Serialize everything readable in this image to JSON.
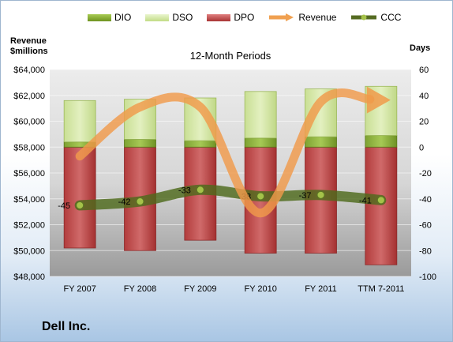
{
  "chart_data": {
    "type": "bar",
    "title": "12-Month Periods",
    "company": "Dell Inc.",
    "left_axis_label": [
      "Revenue",
      "$millions"
    ],
    "right_axis_label": "Days",
    "categories": [
      "FY 2007",
      "FY 2008",
      "FY 2009",
      "FY 2010",
      "FY 2011",
      "TTM 7-2011"
    ],
    "left_axis": {
      "min": 48000,
      "max": 64000,
      "ticks": [
        "$48,000",
        "$50,000",
        "$52,000",
        "$54,000",
        "$56,000",
        "$58,000",
        "$60,000",
        "$62,000",
        "$64,000"
      ]
    },
    "right_axis": {
      "min": -100,
      "max": 60,
      "ticks": [
        "-100",
        "-80",
        "-60",
        "-40",
        "-20",
        "0",
        "20",
        "40",
        "60"
      ]
    },
    "series": [
      {
        "name": "DIO",
        "axis": "right",
        "kind": "stacked-bar",
        "color": "#8db33a",
        "values": [
          4,
          6,
          5,
          7,
          8,
          9
        ]
      },
      {
        "name": "DSO",
        "axis": "right",
        "kind": "stacked-bar",
        "color": "#d4e7a4",
        "values": [
          32,
          31,
          33,
          36,
          37,
          38
        ]
      },
      {
        "name": "DPO",
        "axis": "right",
        "kind": "negative-bar",
        "color": "#c44d4d",
        "values": [
          -78,
          -80,
          -72,
          -82,
          -82,
          -91
        ]
      },
      {
        "name": "Revenue",
        "axis": "left",
        "kind": "line",
        "color": "#f0a050",
        "values": [
          57300,
          61100,
          61100,
          52900,
          61500,
          61700
        ]
      },
      {
        "name": "CCC",
        "axis": "right",
        "kind": "line",
        "color": "#556b22",
        "values": [
          -45,
          -42,
          -33,
          -38,
          -37,
          -41
        ],
        "labels": [
          "-45",
          "-42",
          "-33",
          "-38",
          "-37",
          "-41"
        ]
      }
    ],
    "legend_position": "top",
    "grid": true
  }
}
